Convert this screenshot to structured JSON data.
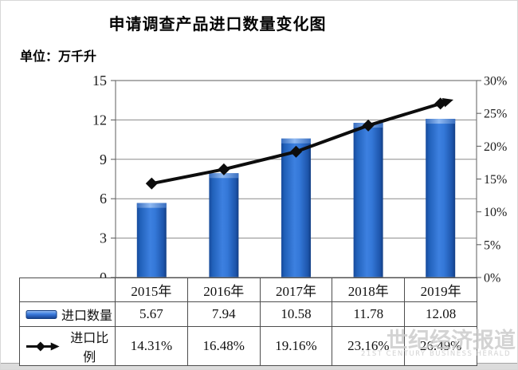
{
  "page": {
    "title": "申请调查产品进口数量变化图",
    "unit_label": "单位：万千升"
  },
  "chart_data": {
    "type": "combo-bar-line",
    "title": "申请调查产品进口数量变化图",
    "unit": "万千升",
    "categories": [
      "2015年",
      "2016年",
      "2017年",
      "2018年",
      "2019年"
    ],
    "series": [
      {
        "name": "进口数量",
        "type": "bar",
        "axis": "left",
        "values": [
          5.67,
          7.94,
          10.58,
          11.78,
          12.08
        ]
      },
      {
        "name": "进口比例",
        "type": "line",
        "axis": "right",
        "values": [
          14.31,
          16.48,
          19.16,
          23.16,
          26.49
        ]
      }
    ],
    "left_axis": {
      "min": 0,
      "max": 15,
      "step": 3,
      "tick_labels": [
        "15",
        "12",
        "9",
        "6",
        "3",
        "0"
      ]
    },
    "right_axis": {
      "min": 0,
      "max": 30,
      "step": 5,
      "tick_labels": [
        "30%",
        "25%",
        "20%",
        "15%",
        "10%",
        "5%",
        "0%"
      ]
    },
    "grid": "horizontal",
    "legend_position": "table-left",
    "colors": {
      "bar_edge": "#174a9b",
      "bar_mid": "#3d80e0",
      "bar_cap": "#8fb9f2",
      "line": "#0d0d0d",
      "grid_line": "#8a8a8a",
      "plot_border": "#787878"
    }
  },
  "table": {
    "rows": [
      {
        "label": "进口数量",
        "marker": "bar",
        "values": [
          "5.67",
          "7.94",
          "10.58",
          "11.78",
          "12.08"
        ]
      },
      {
        "label": "进口比例",
        "marker": "line-arrow",
        "values": [
          "14.31%",
          "16.48%",
          "19.16%",
          "23.16%",
          "26.49%"
        ]
      }
    ]
  },
  "watermark": {
    "text": "世纪经济报道",
    "subtext": "21ST CENTURY BUSINESS HERALD"
  }
}
